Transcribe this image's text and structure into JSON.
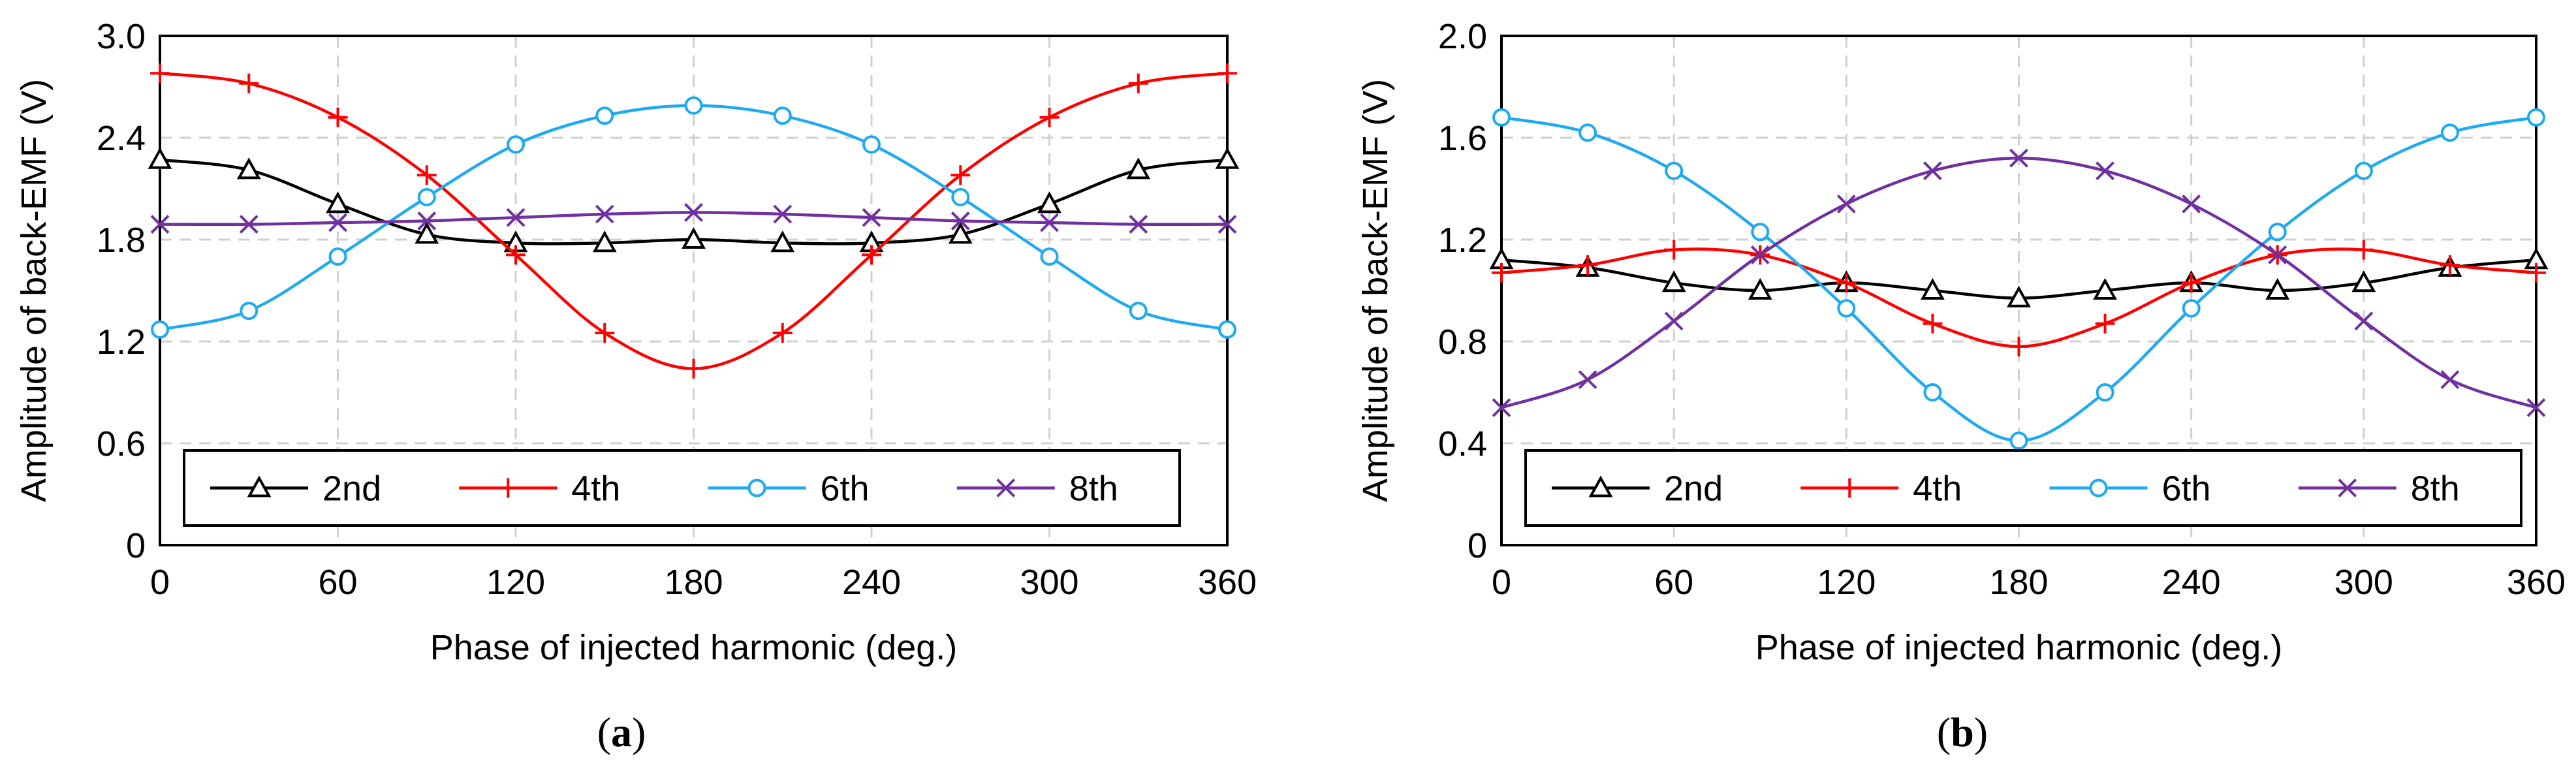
{
  "colors": {
    "2nd": "#000000",
    "4th": "#ff0000",
    "6th": "#1eaaf0",
    "8th": "#7030a0",
    "grid": "#d0d0d0",
    "axis": "#000000"
  },
  "chart_data": [
    {
      "type": "line",
      "title": "",
      "panel_label": "a",
      "xlabel": "Phase of injected harmonic (deg.)",
      "ylabel": "Amplitude of back-EMF (V)",
      "xlim": [
        0,
        360
      ],
      "ylim": [
        0,
        3.0
      ],
      "x_ticks": [
        0,
        60,
        120,
        180,
        240,
        300,
        360
      ],
      "y_ticks": [
        0,
        0.6,
        1.2,
        1.8,
        2.4,
        3.0
      ],
      "x_tick_labels": [
        "0",
        "60",
        "120",
        "180",
        "240",
        "300",
        "360"
      ],
      "y_tick_labels": [
        "0",
        "0.6",
        "1.2",
        "1.8",
        "2.4",
        "3.0"
      ],
      "grid": true,
      "legend_placement": "bottom",
      "x": [
        0,
        30,
        60,
        90,
        120,
        150,
        180,
        210,
        240,
        270,
        300,
        330,
        360
      ],
      "series": [
        {
          "name": "2nd",
          "marker": "triangle",
          "values": [
            2.27,
            2.21,
            2.01,
            1.83,
            1.78,
            1.78,
            1.8,
            1.78,
            1.78,
            1.83,
            2.01,
            2.21,
            2.27
          ]
        },
        {
          "name": "4th",
          "marker": "plus",
          "values": [
            2.78,
            2.72,
            2.52,
            2.18,
            1.71,
            1.25,
            1.04,
            1.25,
            1.71,
            2.18,
            2.52,
            2.72,
            2.78
          ]
        },
        {
          "name": "6th",
          "marker": "circle",
          "values": [
            1.27,
            1.38,
            1.7,
            2.05,
            2.36,
            2.53,
            2.59,
            2.53,
            2.36,
            2.05,
            1.7,
            1.38,
            1.27
          ]
        },
        {
          "name": "8th",
          "marker": "x",
          "values": [
            1.89,
            1.89,
            1.9,
            1.91,
            1.93,
            1.95,
            1.96,
            1.95,
            1.93,
            1.91,
            1.9,
            1.89,
            1.89
          ]
        }
      ]
    },
    {
      "type": "line",
      "title": "",
      "panel_label": "b",
      "xlabel": "Phase of injected harmonic (deg.)",
      "ylabel": "Amplitude of back-EMF (V)",
      "xlim": [
        0,
        360
      ],
      "ylim": [
        0,
        2.0
      ],
      "x_ticks": [
        0,
        60,
        120,
        180,
        240,
        300,
        360
      ],
      "y_ticks": [
        0,
        0.4,
        0.8,
        1.2,
        1.6,
        2.0
      ],
      "x_tick_labels": [
        "0",
        "60",
        "120",
        "180",
        "240",
        "300",
        "360"
      ],
      "y_tick_labels": [
        "0",
        "0.4",
        "0.8",
        "1.2",
        "1.6",
        "2.0"
      ],
      "grid": true,
      "legend_placement": "bottom",
      "x": [
        0,
        30,
        60,
        90,
        120,
        150,
        180,
        210,
        240,
        270,
        300,
        330,
        360
      ],
      "series": [
        {
          "name": "2nd",
          "marker": "triangle",
          "values": [
            1.12,
            1.09,
            1.03,
            1.0,
            1.03,
            1.0,
            0.97,
            1.0,
            1.03,
            1.0,
            1.03,
            1.09,
            1.12
          ]
        },
        {
          "name": "4th",
          "marker": "plus",
          "values": [
            1.07,
            1.1,
            1.16,
            1.14,
            1.03,
            0.87,
            0.78,
            0.87,
            1.03,
            1.14,
            1.16,
            1.1,
            1.07
          ]
        },
        {
          "name": "6th",
          "marker": "circle",
          "values": [
            1.68,
            1.62,
            1.47,
            1.23,
            0.93,
            0.6,
            0.41,
            0.6,
            0.93,
            1.23,
            1.47,
            1.62,
            1.68
          ]
        },
        {
          "name": "8th",
          "marker": "x",
          "values": [
            0.54,
            0.65,
            0.88,
            1.14,
            1.34,
            1.47,
            1.52,
            1.47,
            1.34,
            1.14,
            0.88,
            0.65,
            0.54
          ]
        }
      ]
    }
  ]
}
